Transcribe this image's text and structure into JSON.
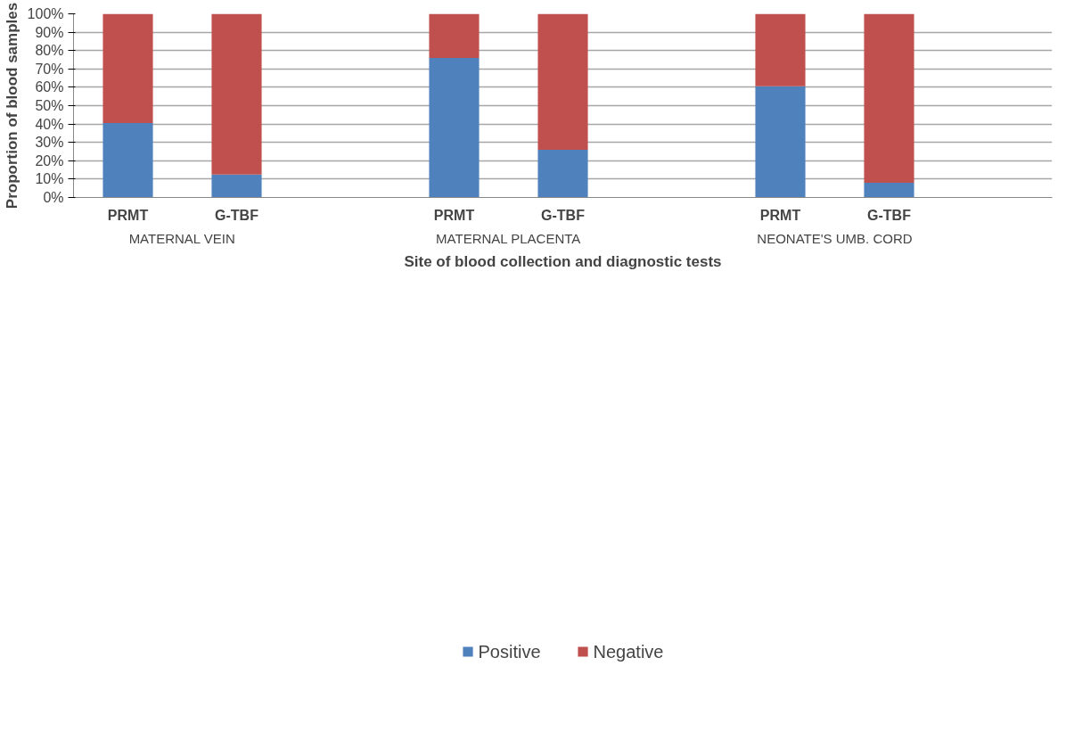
{
  "chart_data": {
    "type": "bar",
    "stacked": true,
    "xlabel": "Site of blood collection and diagnostic tests",
    "ylabel": "Proportion of blood samples",
    "categories": [
      "PRMT",
      "G-TBF",
      null,
      "PRMT",
      "G-TBF",
      null,
      "PRMT",
      "G-TBF",
      null
    ],
    "series": [
      {
        "name": "Positive",
        "color": "#4f81bd",
        "values": [
          40.5,
          12.5,
          null,
          76,
          26,
          null,
          60.5,
          8,
          null
        ]
      },
      {
        "name": "Negative",
        "color": "#c0504d",
        "values": [
          59.5,
          87.5,
          null,
          24,
          74,
          null,
          39.5,
          92,
          null
        ]
      }
    ],
    "annotations": [
      "MATERNAL VEIN",
      "MATERNAL PLACENTA",
      "NEONATE'S UMB. CORD"
    ],
    "ylim": [
      0,
      100
    ],
    "yticks": [
      {
        "value": 0,
        "label": "0%"
      },
      {
        "value": 10,
        "label": "10%"
      },
      {
        "value": 20,
        "label": "20%"
      },
      {
        "value": 30,
        "label": "30%"
      },
      {
        "value": 40,
        "label": "40%"
      },
      {
        "value": 50,
        "label": "50%"
      },
      {
        "value": 60,
        "label": "60%"
      },
      {
        "value": 70,
        "label": "70%"
      },
      {
        "value": 80,
        "label": "80%"
      },
      {
        "value": 90,
        "label": "90%"
      },
      {
        "value": 100,
        "label": "100%"
      }
    ],
    "grid": "y",
    "legend": "bottom"
  }
}
